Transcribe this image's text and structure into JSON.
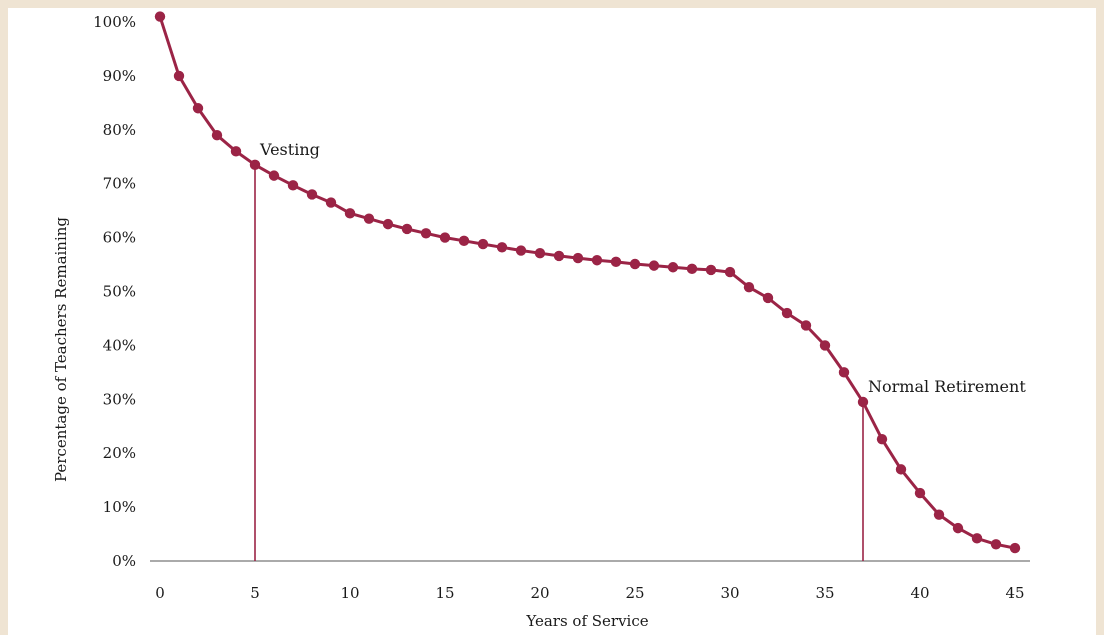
{
  "chart_data": {
    "type": "line",
    "title": "",
    "xlabel": "Years of Service",
    "ylabel": "Percentage of Teachers Remaining",
    "xlim": [
      0,
      45
    ],
    "ylim": [
      0,
      100
    ],
    "x_ticks": [
      0,
      5,
      10,
      15,
      20,
      25,
      30,
      35,
      40,
      45
    ],
    "y_ticks": [
      0,
      10,
      20,
      30,
      40,
      50,
      60,
      70,
      80,
      90,
      100
    ],
    "y_tick_labels": [
      "0%",
      "10%",
      "20%",
      "30%",
      "40%",
      "50%",
      "60%",
      "70%",
      "80%",
      "90%",
      "100%"
    ],
    "x_tick_labels": [
      "0",
      "5",
      "10",
      "15",
      "20",
      "25",
      "30",
      "35",
      "40",
      "45"
    ],
    "grid": false,
    "series": [
      {
        "color": "#9b2446",
        "x": [
          0,
          1,
          2,
          3,
          4,
          5,
          6,
          7,
          8,
          9,
          10,
          11,
          12,
          13,
          14,
          15,
          16,
          17,
          18,
          19,
          20,
          21,
          22,
          23,
          24,
          25,
          26,
          27,
          28,
          29,
          30,
          31,
          32,
          33,
          34,
          35,
          36,
          37,
          38,
          39,
          40,
          41,
          42,
          43,
          44,
          45
        ],
        "y": [
          101,
          90,
          84,
          79,
          76,
          73.5,
          71.5,
          69.7,
          68,
          66.5,
          64.5,
          63.5,
          62.5,
          61.6,
          60.8,
          60,
          59.4,
          58.8,
          58.2,
          57.6,
          57.1,
          56.6,
          56.2,
          55.8,
          55.5,
          55.1,
          54.8,
          54.5,
          54.2,
          54,
          53.6,
          50.8,
          48.8,
          46,
          43.7,
          40,
          35,
          29.5,
          22.6,
          17,
          12.6,
          8.6,
          6.1,
          4.2,
          3.1,
          2.4
        ]
      }
    ],
    "annotations": [
      {
        "label": "Vesting",
        "x": 5,
        "y": 73.5
      },
      {
        "label": "Normal Retirement",
        "x": 37,
        "y": 29.5
      }
    ]
  }
}
